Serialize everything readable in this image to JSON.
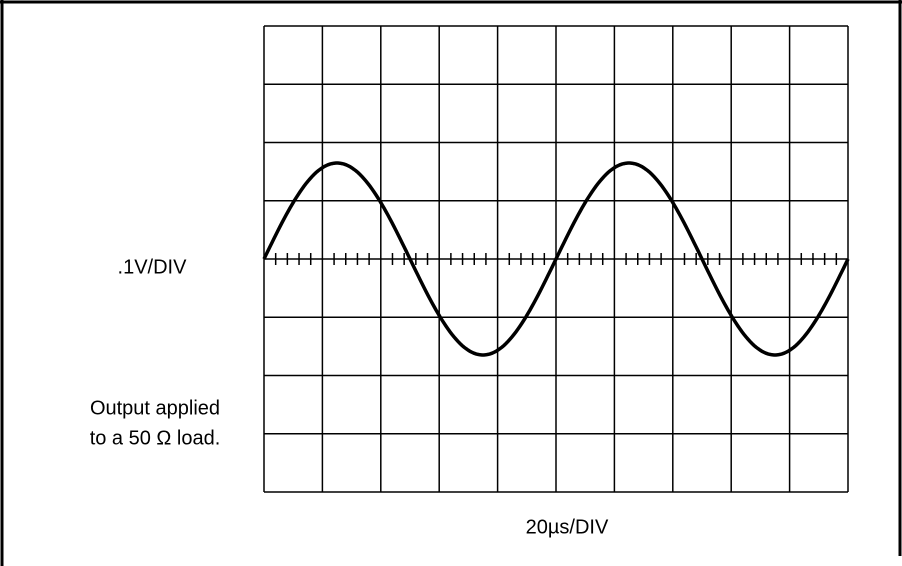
{
  "vertical_scale": ".1V/DIV",
  "note": [
    "Output applied",
    "to a 50 Ω load."
  ],
  "horizontal_scale": "20µs/DIV"
}
